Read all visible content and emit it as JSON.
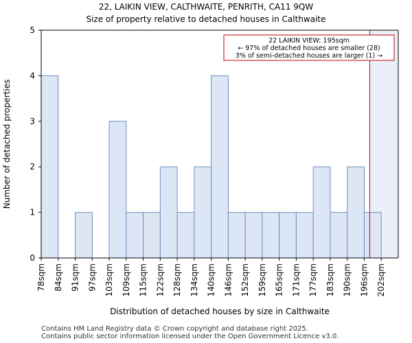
{
  "title": "22, LAIKIN VIEW, CALTHWAITE, PENRITH, CA11 9QW",
  "subtitle": "Size of property relative to detached houses in Calthwaite",
  "footer": {
    "line1": "Contains HM Land Registry data © Crown copyright and database right 2025.",
    "line2": "Contains public sector information licensed under the Open Government Licence v3.0."
  },
  "colors": {
    "bar_fill": "#dce6f4",
    "bar_stroke": "#6e8fbf",
    "marker": "#c00000",
    "highlight": "#eaf0fa"
  },
  "chart_data": {
    "type": "bar",
    "xlabel": "Distribution of detached houses by size in Calthwaite",
    "ylabel": "Number of detached properties",
    "categories": [
      "78sqm",
      "84sqm",
      "91sqm",
      "97sqm",
      "103sqm",
      "109sqm",
      "115sqm",
      "122sqm",
      "128sqm",
      "134sqm",
      "140sqm",
      "146sqm",
      "152sqm",
      "159sqm",
      "165sqm",
      "171sqm",
      "177sqm",
      "183sqm",
      "190sqm",
      "196sqm",
      "202sqm"
    ],
    "values": [
      4,
      0,
      1,
      0,
      3,
      1,
      1,
      2,
      1,
      2,
      4,
      1,
      1,
      1,
      1,
      1,
      2,
      1,
      2,
      1,
      0
    ],
    "ylim": [
      0,
      5
    ],
    "yticks": [
      0,
      1,
      2,
      3,
      4,
      5
    ],
    "grid": false,
    "marker_value_sqm": 195,
    "annotation": {
      "line1": "22 LAIKIN VIEW: 195sqm",
      "line2": "← 97% of detached houses are smaller (28)",
      "line3": "3% of semi-detached houses are larger (1) →"
    }
  }
}
